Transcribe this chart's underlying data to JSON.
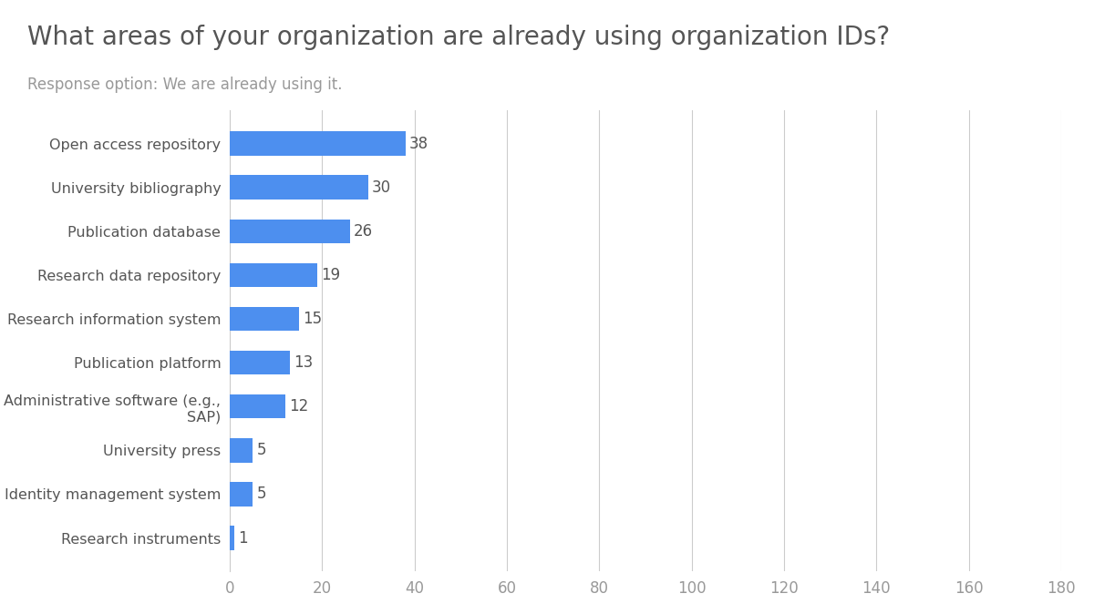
{
  "title": "What areas of your organization are already using organization IDs?",
  "subtitle": "Response option: We are already using it.",
  "categories": [
    "Open access repository",
    "University bibliography",
    "Publication database",
    "Research data repository",
    "Research information system",
    "Publication platform",
    "Administrative software (e.g.,\nSAP)",
    "University press",
    "Identity management system",
    "Research instruments"
  ],
  "values": [
    38,
    30,
    26,
    19,
    15,
    13,
    12,
    5,
    5,
    1
  ],
  "bar_color": "#4d8fef",
  "background_color": "#ffffff",
  "title_color": "#555555",
  "subtitle_color": "#999999",
  "label_color": "#555555",
  "value_color": "#555555",
  "grid_color": "#cccccc",
  "tick_color": "#999999",
  "xlim": [
    0,
    180
  ],
  "xticks": [
    0,
    20,
    40,
    60,
    80,
    100,
    120,
    140,
    160,
    180
  ],
  "title_fontsize": 20,
  "subtitle_fontsize": 12,
  "label_fontsize": 11.5,
  "value_fontsize": 12,
  "tick_fontsize": 12
}
